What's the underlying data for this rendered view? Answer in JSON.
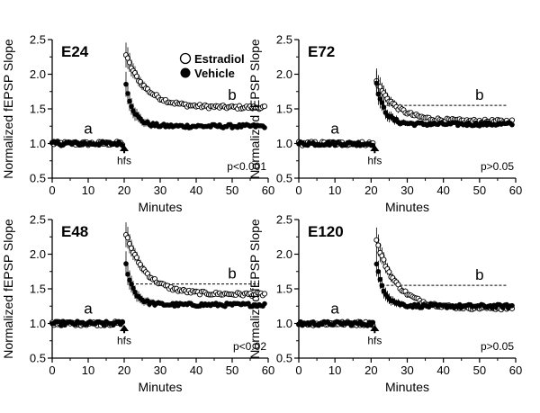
{
  "chart_data": [
    {
      "type": "scatter",
      "title": "E24",
      "xlabel": "Minutes",
      "ylabel": "Normalized fEPSP Slope",
      "xlim": [
        0,
        60
      ],
      "ylim": [
        0.5,
        2.5
      ],
      "xticks": [
        "0",
        "10",
        "20",
        "30",
        "40",
        "50",
        "60"
      ],
      "yticks": [
        "0.5",
        "1.0",
        "1.5",
        "2.0",
        "2.5"
      ],
      "legend": {
        "position": "top-right",
        "entries": [
          "Estradiol",
          "Vehicle"
        ]
      },
      "baseline_label": "a",
      "ltp_label": "b",
      "stim_label": "hfs",
      "stim_time": 20,
      "p_value": "p<0.001",
      "reference_line": null,
      "series": [
        {
          "name": "Estradiol",
          "marker": "open-circle",
          "baseline": 1.0,
          "peak": 2.28,
          "plateau": 1.52
        },
        {
          "name": "Vehicle",
          "marker": "filled-circle",
          "baseline": 1.0,
          "peak": 1.85,
          "plateau": 1.25
        }
      ]
    },
    {
      "type": "scatter",
      "title": "E72",
      "xlabel": "Minutes",
      "ylabel": "Normalized fEPSP Slope",
      "xlim": [
        0,
        60
      ],
      "ylim": [
        0.5,
        2.5
      ],
      "xticks": [
        "0",
        "10",
        "20",
        "30",
        "40",
        "50",
        "60"
      ],
      "yticks": [
        "0.5",
        "1.0",
        "1.5",
        "2.0",
        "2.5"
      ],
      "baseline_label": "a",
      "ltp_label": "b",
      "stim_label": "hfs",
      "stim_time": 21,
      "p_value": "p>0.05",
      "reference_line": 1.55,
      "series": [
        {
          "name": "Estradiol",
          "marker": "open-circle",
          "baseline": 1.0,
          "peak": 1.9,
          "plateau": 1.32
        },
        {
          "name": "Vehicle",
          "marker": "filled-circle",
          "baseline": 1.0,
          "peak": 1.85,
          "plateau": 1.28
        }
      ]
    },
    {
      "type": "scatter",
      "title": "E48",
      "xlabel": "Minutes",
      "ylabel": "Normalized fEPSP Slope",
      "xlim": [
        0,
        60
      ],
      "ylim": [
        0.5,
        2.5
      ],
      "xticks": [
        "0",
        "10",
        "20",
        "30",
        "40",
        "50",
        "60"
      ],
      "yticks": [
        "0.5",
        "1.0",
        "1.5",
        "2.0",
        "2.5"
      ],
      "baseline_label": "a",
      "ltp_label": "b",
      "stim_label": "hfs",
      "stim_time": 20,
      "p_value": "p<0.02",
      "reference_line": 1.57,
      "series": [
        {
          "name": "Estradiol",
          "marker": "open-circle",
          "baseline": 1.0,
          "peak": 2.3,
          "plateau": 1.42
        },
        {
          "name": "Vehicle",
          "marker": "filled-circle",
          "baseline": 1.0,
          "peak": 1.85,
          "plateau": 1.27
        }
      ]
    },
    {
      "type": "scatter",
      "title": "E120",
      "xlabel": "Minutes",
      "ylabel": "Normalized fEPSP Slope",
      "xlim": [
        0,
        60
      ],
      "ylim": [
        0.5,
        2.5
      ],
      "xticks": [
        "0",
        "10",
        "20",
        "30",
        "40",
        "50",
        "60"
      ],
      "yticks": [
        "0.5",
        "1.0",
        "1.5",
        "2.0",
        "2.5"
      ],
      "baseline_label": "a",
      "ltp_label": "b",
      "stim_label": "hfs",
      "stim_time": 21,
      "p_value": "p>0.05",
      "reference_line": 1.55,
      "series": [
        {
          "name": "Estradiol",
          "marker": "open-circle",
          "baseline": 1.0,
          "peak": 2.2,
          "plateau": 1.22
        },
        {
          "name": "Vehicle",
          "marker": "filled-circle",
          "baseline": 1.0,
          "peak": 1.85,
          "plateau": 1.25
        }
      ]
    }
  ]
}
